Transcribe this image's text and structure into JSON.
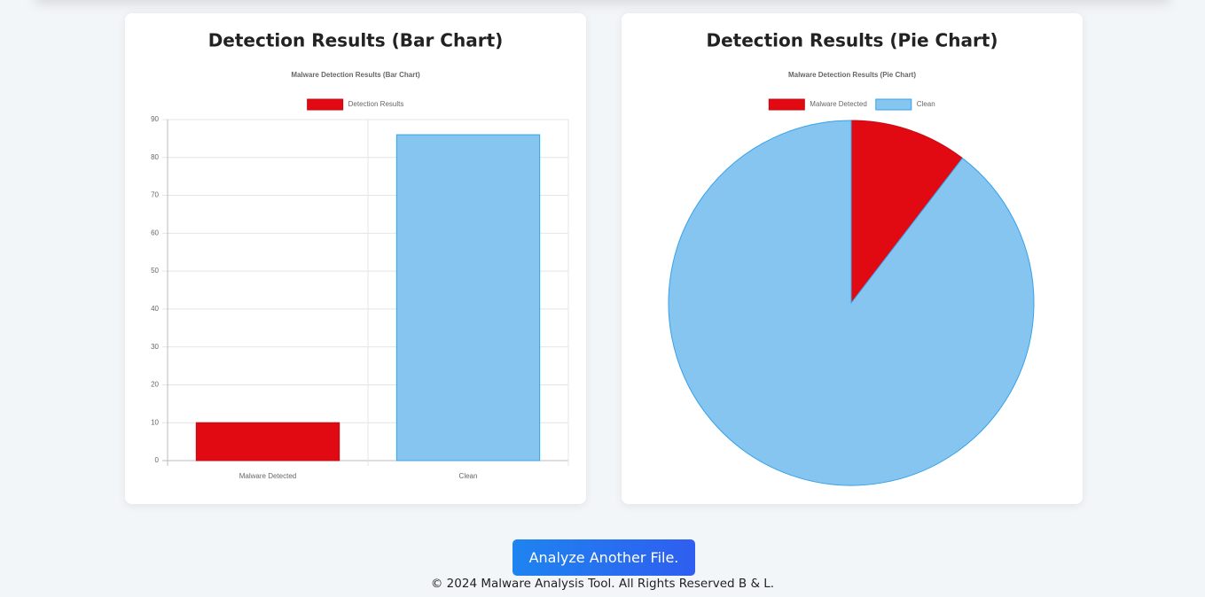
{
  "cards": [
    {
      "heading": "Detection Results (Bar Chart)"
    },
    {
      "heading": "Detection Results (Pie Chart)"
    }
  ],
  "chart_data": [
    {
      "type": "bar",
      "title": "Malware Detection Results (Bar Chart)",
      "categories": [
        "Malware Detected",
        "Clean"
      ],
      "series": [
        {
          "name": "Detection Results",
          "values": [
            10,
            86
          ]
        }
      ],
      "colors": [
        "#e20a12",
        "#86c5f0"
      ],
      "border_colors": [
        "#c40a12",
        "#36a2eb"
      ],
      "ylim": [
        0,
        90
      ],
      "yticks": [
        0,
        10,
        20,
        30,
        40,
        50,
        60,
        70,
        80,
        90
      ],
      "grid": true,
      "legend": "top"
    },
    {
      "type": "pie",
      "title": "Malware Detection Results (Pie Chart)",
      "categories": [
        "Malware Detected",
        "Clean"
      ],
      "values": [
        10,
        86
      ],
      "colors": [
        "#e20a12",
        "#86c5f0"
      ],
      "border_colors": [
        "#c40a12",
        "#36a2eb"
      ],
      "legend": "top"
    }
  ],
  "button": "Analyze Another File.",
  "footer": "© 2024 Malware Analysis Tool. All Rights Reserved B & L."
}
